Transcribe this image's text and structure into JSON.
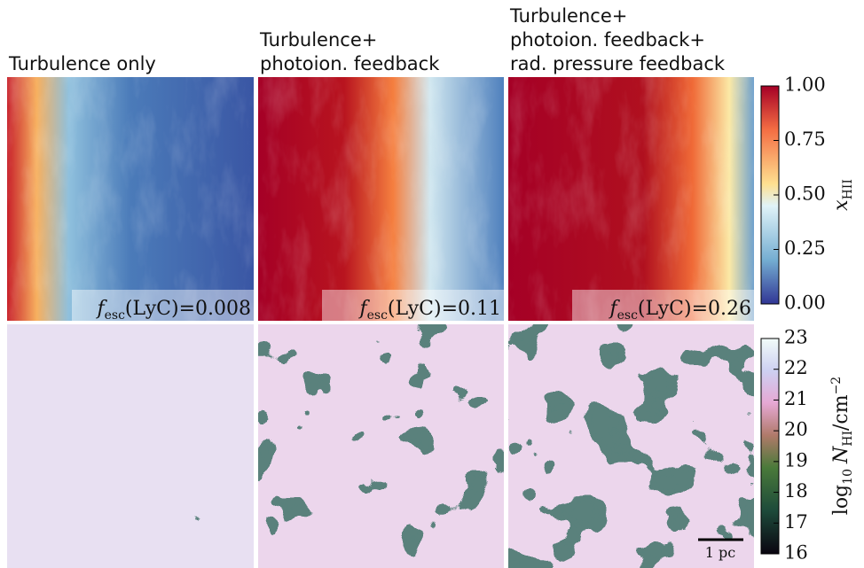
{
  "columns": [
    {
      "title": [
        "Turbulence only"
      ],
      "f_esc": 0.008
    },
    {
      "title": [
        "Turbulence+",
        "photoion. feedback"
      ],
      "f_esc": 0.11
    },
    {
      "title": [
        "Turbulence+",
        "photoion. feedback+",
        "rad. pressure feedback"
      ],
      "f_esc": 0.26
    }
  ],
  "f_esc_label": {
    "symbol": "f",
    "subscript": "esc",
    "argument": "(LyC)",
    "equals": "="
  },
  "colorbars": [
    {
      "label": {
        "symbol": "x",
        "subscript": "HII"
      },
      "lim": [
        0,
        1
      ],
      "ticks": [
        {
          "value": 0,
          "label": "0.00"
        },
        {
          "value": 0.25,
          "label": "0.25"
        },
        {
          "value": 0.5,
          "label": "0.50"
        },
        {
          "value": 0.75,
          "label": "0.75"
        },
        {
          "value": 1,
          "label": "1.00"
        }
      ]
    },
    {
      "label": {
        "prefix": "log",
        "prefix_subscript": "10",
        "symbol": "N",
        "subscript": "HI",
        "unit": "/cm",
        "unit_superscript": "−2"
      },
      "lim": [
        16,
        23
      ],
      "ticks": [
        16,
        17,
        18,
        19,
        20,
        21,
        22,
        23
      ]
    }
  ],
  "scale_bar": {
    "label": "1 pc"
  }
}
